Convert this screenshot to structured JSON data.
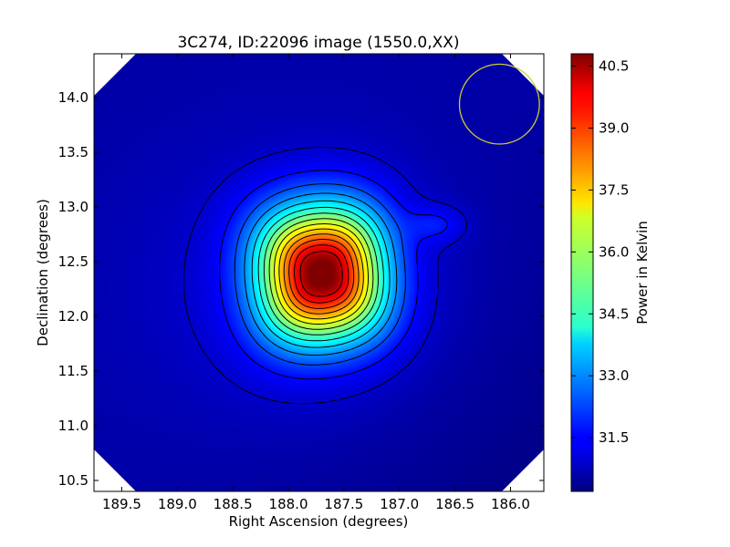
{
  "chart_data": {
    "type": "heatmap",
    "title": "3C274, ID:22096 image (1550.0,XX)",
    "xlabel": "Right Ascension (degrees)",
    "ylabel": "Declination (degrees)",
    "xlim": [
      189.75,
      185.7
    ],
    "ylim": [
      10.4,
      14.4
    ],
    "xticks": [
      189.5,
      189.0,
      188.5,
      188.0,
      187.5,
      187.0,
      186.5,
      186.0
    ],
    "xtick_labels": [
      "189.5",
      "189.0",
      "188.5",
      "188.0",
      "187.5",
      "187.0",
      "186.5",
      "186.0"
    ],
    "yticks": [
      10.5,
      11.0,
      11.5,
      12.0,
      12.5,
      13.0,
      13.5,
      14.0
    ],
    "ytick_labels": [
      "10.5",
      "11.0",
      "11.5",
      "12.0",
      "12.5",
      "13.0",
      "13.5",
      "14.0"
    ],
    "colorbar": {
      "label": "Power in Kelvin",
      "range": [
        30.2,
        40.8
      ],
      "ticks": [
        31.5,
        33.0,
        34.5,
        36.0,
        37.5,
        39.0,
        40.5
      ],
      "tick_labels": [
        "31.5",
        "33.0",
        "34.5",
        "36.0",
        "37.5",
        "39.0",
        "40.5"
      ],
      "colormap": "jet"
    },
    "source_peak": {
      "ra": 187.7,
      "dec": 12.39,
      "value": 40.6
    },
    "background_level": 30.6,
    "contour_levels": [
      31.0,
      31.6,
      32.3,
      33.0,
      33.7,
      34.4,
      35.1,
      35.8,
      36.5,
      37.2,
      37.9,
      38.6,
      39.3,
      40.0
    ],
    "beam_circle": {
      "ra": 186.1,
      "dec": 13.94,
      "radius_deg": 0.36,
      "color": "#cccc33"
    }
  }
}
